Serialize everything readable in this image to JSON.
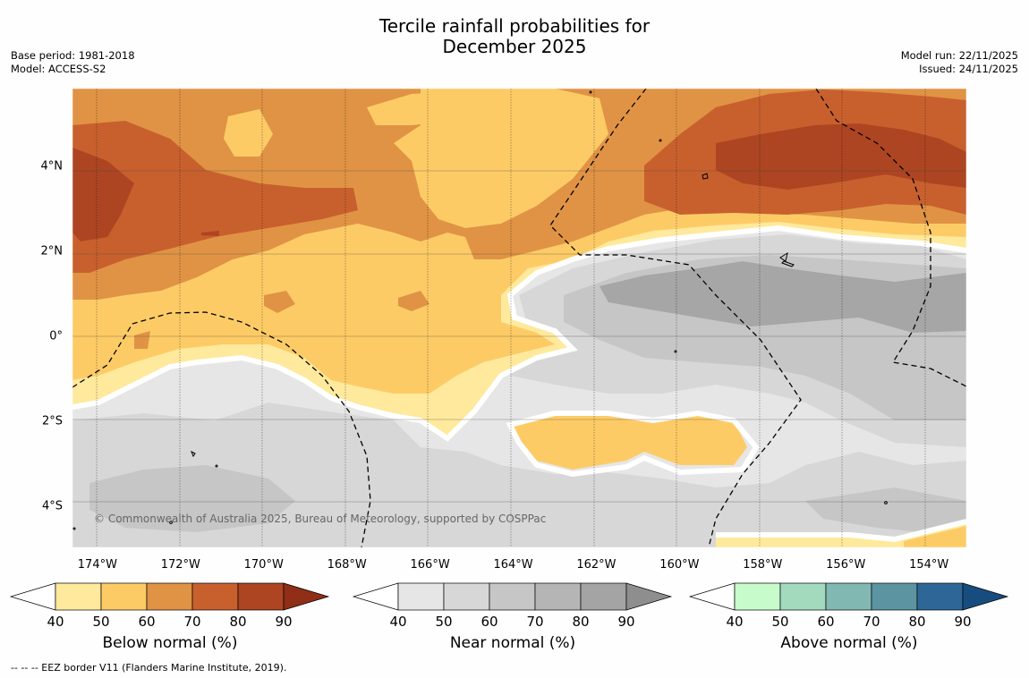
{
  "header": {
    "title_line1": "Tercile rainfall probabilities for",
    "title_line2": "December 2025",
    "base_period": "Base period: 1981-2018",
    "model": "Model: ACCESS-S2",
    "model_run": "Model run: 22/11/2025",
    "issued": "Issued: 24/11/2025"
  },
  "map": {
    "copyright": "© Commonwealth of Australia 2025, Bureau of Meteorology, supported by COSPPac",
    "lon_labels": [
      "174°W",
      "172°W",
      "170°W",
      "168°W",
      "166°W",
      "164°W",
      "162°W",
      "160°W",
      "158°W",
      "156°W",
      "154°W"
    ],
    "lon_values": [
      -174,
      -172,
      -170,
      -168,
      -166,
      -164,
      -162,
      -160,
      -158,
      -156,
      -154
    ],
    "lat_labels": [
      "4°N",
      "2°N",
      "0°",
      "2°S",
      "4°S"
    ],
    "lat_values": [
      4,
      2,
      0,
      -2,
      -4
    ],
    "lon_range": [
      -174.6,
      -153.1
    ],
    "lat_range": [
      -5.0,
      5.8
    ],
    "colors": {
      "below": [
        "#fee99c",
        "#fdcb66",
        "#e09344",
        "#c8602e",
        "#ad4522",
        "#902e18"
      ],
      "near": [
        "#e6e6e6",
        "#d7d7d7",
        "#c6c6c6",
        "#b5b5b5",
        "#a4a4a4",
        "#8e8e8e"
      ],
      "above": [
        "#c8fbcc",
        "#a3dabe",
        "#82b8b2",
        "#5c94a2",
        "#2f6698",
        "#174d7e"
      ]
    }
  },
  "colorbars": [
    {
      "label": "Below normal (%)",
      "ticks": [
        "40",
        "50",
        "60",
        "70",
        "80",
        "90"
      ]
    },
    {
      "label": "Near normal (%)",
      "ticks": [
        "40",
        "50",
        "60",
        "70",
        "80",
        "90"
      ]
    },
    {
      "label": "Above normal (%)",
      "ticks": [
        "40",
        "50",
        "60",
        "70",
        "80",
        "90"
      ]
    }
  ],
  "footnote": "-- -- -- EEZ border V11 (Flanders Marine Institute, 2019)."
}
